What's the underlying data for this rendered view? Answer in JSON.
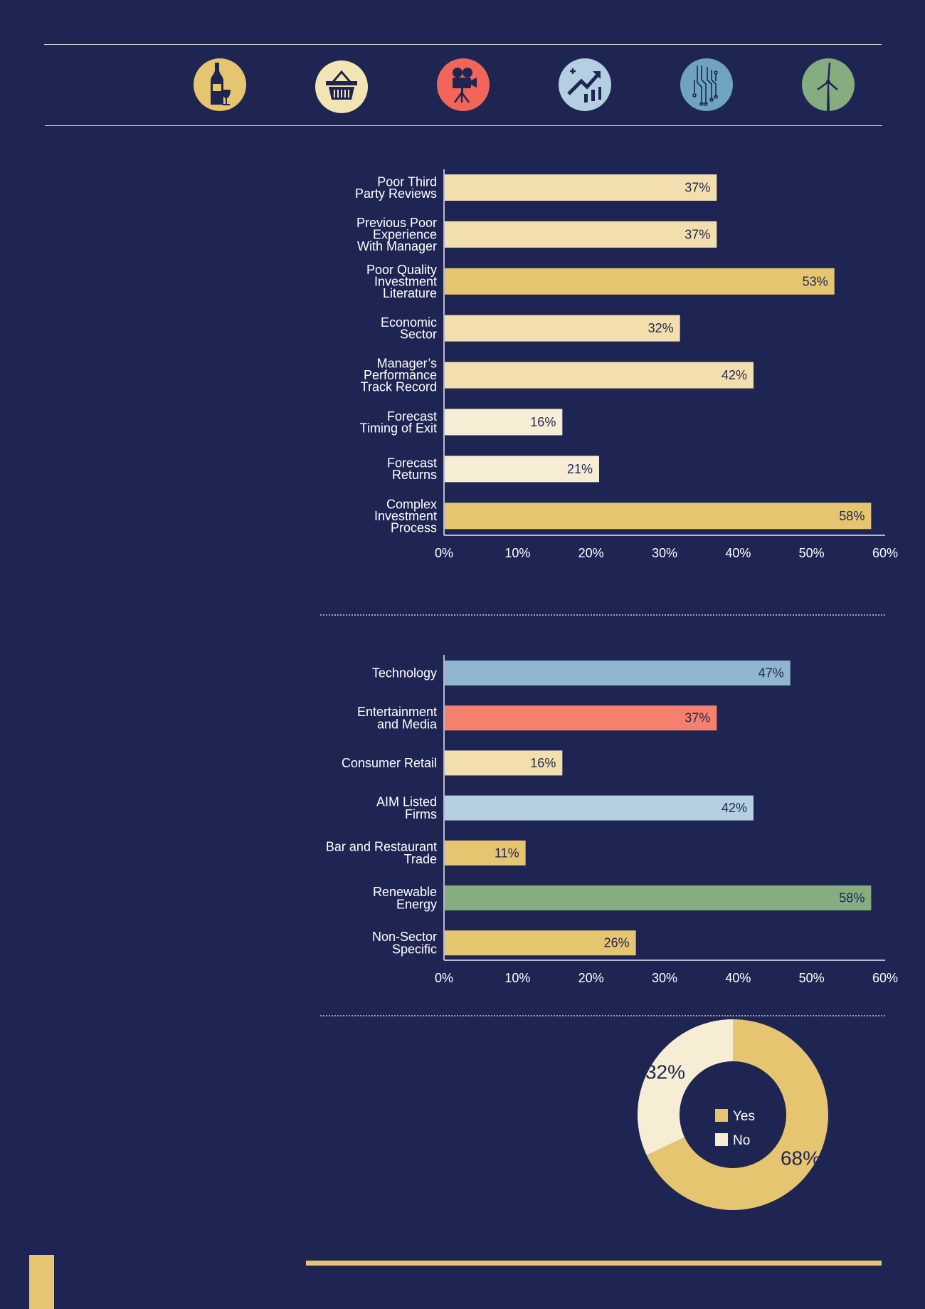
{
  "icons": [
    {
      "name": "wine-bottle-glass-icon",
      "color": "#e6c570"
    },
    {
      "name": "shopping-basket-icon",
      "color": "#f3e4b3"
    },
    {
      "name": "film-camera-icon",
      "color": "#f2665a"
    },
    {
      "name": "stock-chart-icon",
      "color": "#b3cfe0"
    },
    {
      "name": "circuit-board-icon",
      "color": "#6ea3c2"
    },
    {
      "name": "wind-turbine-icon",
      "color": "#86ad80"
    }
  ],
  "chart_data": [
    {
      "type": "bar",
      "orientation": "horizontal",
      "categories": [
        "Poor Third\nParty Reviews",
        "Previous Poor\nExperience\nWith Manager",
        "Poor Quality\nInvestment\nLiterature",
        "Economic\nSector",
        "Manager’s\nPerformance\nTrack Record",
        "Forecast\nTiming of Exit",
        "Forecast\nReturns",
        "Complex\nInvestment\nProcess"
      ],
      "values": [
        37,
        37,
        53,
        32,
        42,
        16,
        21,
        58
      ],
      "value_labels": [
        "37%",
        "37%",
        "53%",
        "32%",
        "42%",
        "16%",
        "21%",
        "58%"
      ],
      "colors": [
        "#f3dfad",
        "#f3dfad",
        "#e6c570",
        "#f3dfad",
        "#f3dfad",
        "#f7edd5",
        "#f7edd5",
        "#e6c570"
      ],
      "xlim": [
        0,
        60
      ],
      "xticks": [
        "0%",
        "10%",
        "20%",
        "30%",
        "40%",
        "50%",
        "60%"
      ],
      "grid": false
    },
    {
      "type": "bar",
      "orientation": "horizontal",
      "categories": [
        "Technology",
        "Entertainment\nand Media",
        "Consumer Retail",
        "AIM Listed\nFirms",
        "Bar and Restaurant\nTrade",
        "Renewable\nEnergy",
        "Non-Sector\nSpecific"
      ],
      "values": [
        47,
        37,
        16,
        42,
        11,
        58,
        26
      ],
      "value_labels": [
        "47%",
        "37%",
        "16%",
        "42%",
        "11%",
        "58%",
        "26%"
      ],
      "colors": [
        "#8fb6cd",
        "#f5806e",
        "#f3dfad",
        "#b3cfe0",
        "#e6c570",
        "#86ad80",
        "#e6c570"
      ],
      "xlim": [
        0,
        60
      ],
      "xticks": [
        "0%",
        "10%",
        "20%",
        "30%",
        "40%",
        "50%",
        "60%"
      ],
      "grid": false
    },
    {
      "type": "pie",
      "donut": true,
      "categories": [
        "Yes",
        "No"
      ],
      "values": [
        68,
        32
      ],
      "value_labels": [
        "68%",
        "32%"
      ],
      "colors": [
        "#e6c570",
        "#f7edd5"
      ],
      "legend": "center"
    }
  ]
}
